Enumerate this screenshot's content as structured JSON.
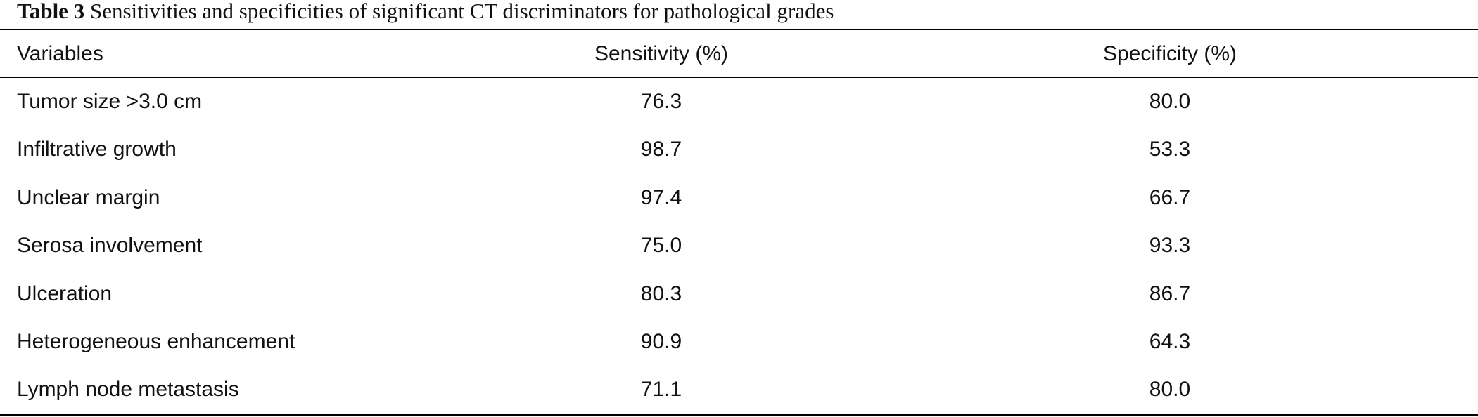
{
  "caption": {
    "label": "Table 3",
    "text": "Sensitivities and specificities of significant CT discriminators for pathological grades"
  },
  "table": {
    "headers": [
      "Variables",
      "Sensitivity (%)",
      "Specificity (%)"
    ],
    "rows": [
      {
        "variable": "Tumor size >3.0 cm",
        "sensitivity": "76.3",
        "specificity": "80.0"
      },
      {
        "variable": "Infiltrative growth",
        "sensitivity": "98.7",
        "specificity": "53.3"
      },
      {
        "variable": "Unclear margin",
        "sensitivity": "97.4",
        "specificity": "66.7"
      },
      {
        "variable": "Serosa involvement",
        "sensitivity": "75.0",
        "specificity": "93.3"
      },
      {
        "variable": "Ulceration",
        "sensitivity": "80.3",
        "specificity": "86.7"
      },
      {
        "variable": "Heterogeneous enhancement",
        "sensitivity": "90.9",
        "specificity": "64.3"
      },
      {
        "variable": "Lymph node metastasis",
        "sensitivity": "71.1",
        "specificity": "80.0"
      }
    ]
  }
}
